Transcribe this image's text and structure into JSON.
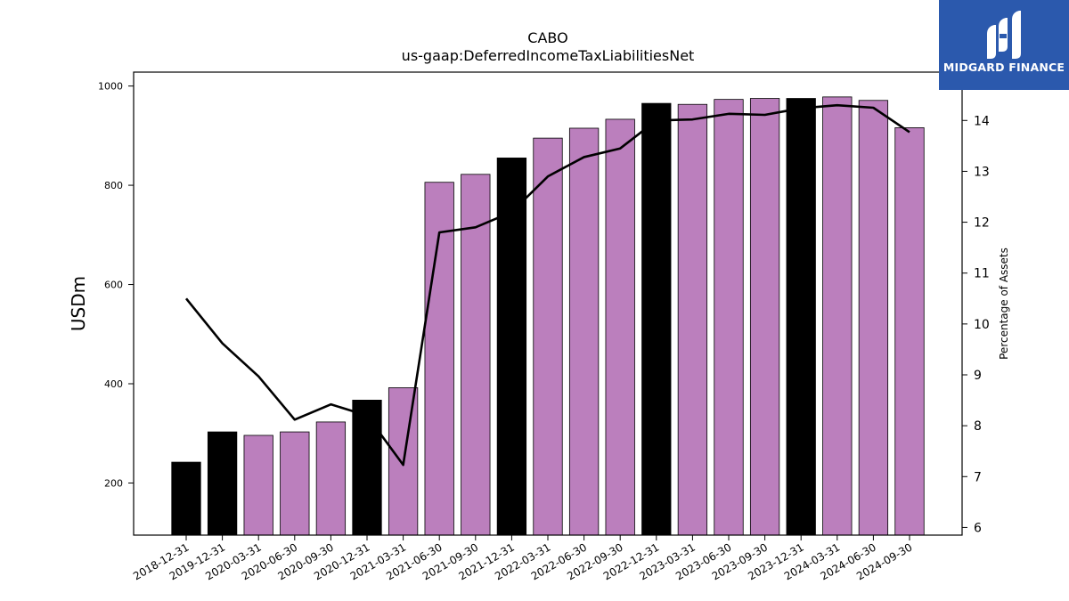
{
  "chart_data": {
    "type": "bar",
    "title": "CABO",
    "subtitle": "us-gaap:DeferredIncomeTaxLiabilitiesNet",
    "ylabel": "USDm",
    "y2label": "Percentage of Assets",
    "ylim": [
      95,
      1028
    ],
    "y2lim": [
      5.85,
      14.95
    ],
    "yticks": [
      200,
      400,
      600,
      800,
      1000
    ],
    "y2ticks": [
      6,
      7,
      8,
      9,
      10,
      11,
      12,
      13,
      14
    ],
    "categories": [
      "2018-12-31",
      "2019-12-31",
      "2020-03-31",
      "2020-06-30",
      "2020-09-30",
      "2020-12-31",
      "2021-03-31",
      "2021-06-30",
      "2021-09-30",
      "2021-12-31",
      "2022-03-31",
      "2022-06-30",
      "2022-09-30",
      "2022-12-31",
      "2023-03-31",
      "2023-06-30",
      "2023-09-30",
      "2023-12-31",
      "2024-03-31",
      "2024-06-30",
      "2024-09-30"
    ],
    "series": [
      {
        "kind": "bar",
        "values": [
          242,
          303,
          296,
          303,
          323,
          367,
          392,
          806,
          822,
          855,
          895,
          915,
          933,
          965,
          963,
          973,
          975,
          975,
          978,
          971,
          916
        ],
        "period_types": [
          "annual",
          "annual",
          "quarterly",
          "quarterly",
          "quarterly",
          "annual",
          "quarterly",
          "quarterly",
          "quarterly",
          "annual",
          "quarterly",
          "quarterly",
          "quarterly",
          "annual",
          "quarterly",
          "quarterly",
          "quarterly",
          "annual",
          "quarterly",
          "quarterly",
          "quarterly"
        ]
      },
      {
        "kind": "line",
        "axis": "right",
        "values": [
          10.5,
          9.62,
          8.97,
          8.12,
          8.42,
          8.2,
          7.23,
          11.8,
          11.9,
          12.2,
          12.9,
          13.28,
          13.45,
          14.0,
          14.02,
          14.13,
          14.11,
          14.24,
          14.3,
          14.25,
          13.77
        ]
      }
    ],
    "colors": {
      "annual": "#000000",
      "quarterly": "#bb7fbd",
      "line": "#000000"
    },
    "grid": false,
    "legend": "none"
  },
  "logo": {
    "text": "MIDGARD FINANCE",
    "background": "#2b59ad"
  }
}
